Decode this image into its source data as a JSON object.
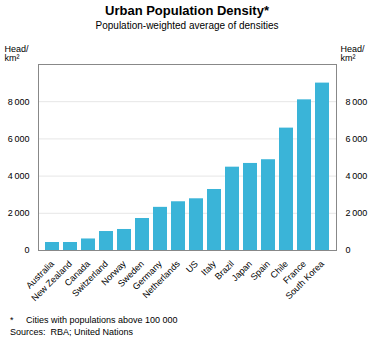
{
  "chart_data": {
    "type": "bar",
    "title": "Urban Population Density*",
    "subtitle": "Population-weighted average of densities",
    "ylabel": "Head/\nkm²",
    "y2label": "Head/\nkm²",
    "footnote": "*     Cities with populations above 100 000",
    "sources": "Sources:  RBA; United Nations",
    "categories": [
      "Australia",
      "New Zealand",
      "Canada",
      "Switzerland",
      "Norway",
      "Sweden",
      "Germany",
      "Netherlands",
      "US",
      "Italy",
      "Brazil",
      "Japan",
      "Spain",
      "Chile",
      "France",
      "South Korea"
    ],
    "values": [
      430,
      430,
      620,
      1020,
      1130,
      1720,
      2320,
      2620,
      2780,
      3280,
      4480,
      4680,
      4880,
      6580,
      8100,
      9000
    ],
    "color": "#3ab4d8",
    "ylim": [
      0,
      10000
    ],
    "yticks": [
      0,
      {
        "value": 2000,
        "label": "2 000"
      },
      {
        "value": 4000,
        "label": "4 000"
      },
      {
        "value": 6000,
        "label": "6 000"
      },
      {
        "value": 8000,
        "label": "8 000"
      }
    ],
    "y2lim": [
      0,
      10000
    ],
    "y2ticks": [
      0,
      {
        "value": 2000,
        "label": "2 000"
      },
      {
        "value": 4000,
        "label": "4 000"
      },
      {
        "value": 6000,
        "label": "6 000"
      },
      {
        "value": 8000,
        "label": "8 000"
      }
    ],
    "grid": true
  }
}
